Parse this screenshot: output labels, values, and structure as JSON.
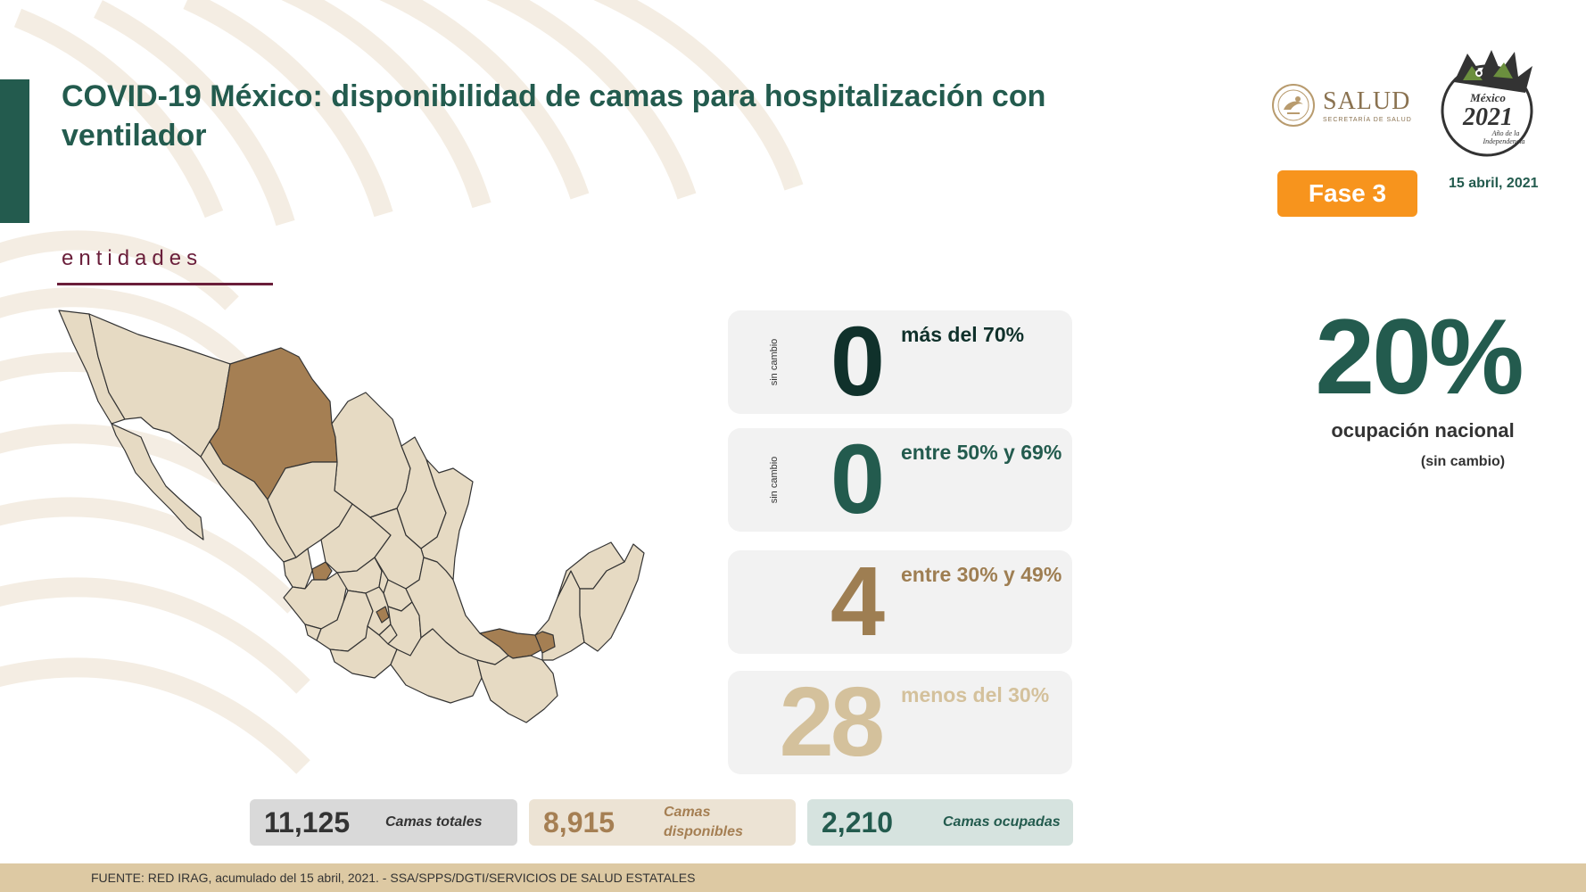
{
  "header": {
    "title": "COVID-19 México: disponibilidad de camas para hospitalización con ventilador",
    "section_label": "entidades",
    "fase_badge": "Fase 3",
    "date": "15 abril, 2021",
    "salud_logo": {
      "word": "SALUD",
      "subtitle": "SECRETARÍA DE SALUD"
    },
    "year_logo": {
      "top": "México",
      "year": "2021",
      "caption_1": "Año de la",
      "caption_2": "Independencia"
    }
  },
  "colors": {
    "primary_green": "#235b4e",
    "dark_green": "#10312b",
    "gold": "#9e7e52",
    "light_gold": "#d4c19c",
    "orange": "#f7941d",
    "burgundy": "#6a1e3a",
    "map_base": "#e6dac3",
    "map_highlight": "#a57f53"
  },
  "stats": [
    {
      "count": "0",
      "label": "más del 70%",
      "side": "sin cambio",
      "color": "#10312b"
    },
    {
      "count": "0",
      "label": "entre 50% y 69%",
      "side": "sin cambio",
      "color": "#235b4e"
    },
    {
      "count": "4",
      "label": "entre 30% y 49%",
      "side": "",
      "color": "#9e7e52"
    },
    {
      "count": "28",
      "label": "menos del 30%",
      "side": "",
      "color": "#d4c19c"
    }
  ],
  "national": {
    "percentage": "20%",
    "label": "ocupación nacional",
    "change": "(sin cambio)"
  },
  "beds": {
    "total": {
      "value": "11,125",
      "label": "Camas totales"
    },
    "available": {
      "value": "8,915",
      "label": "Camas disponibles"
    },
    "occupied": {
      "value": "2,210",
      "label": "Camas ocupadas"
    }
  },
  "footer": {
    "source": "FUENTE: RED IRAG, acumulado del 15 abril, 2021. -  SSA/SPPS/DGTI/SERVICIOS DE SALUD ESTATALES"
  }
}
